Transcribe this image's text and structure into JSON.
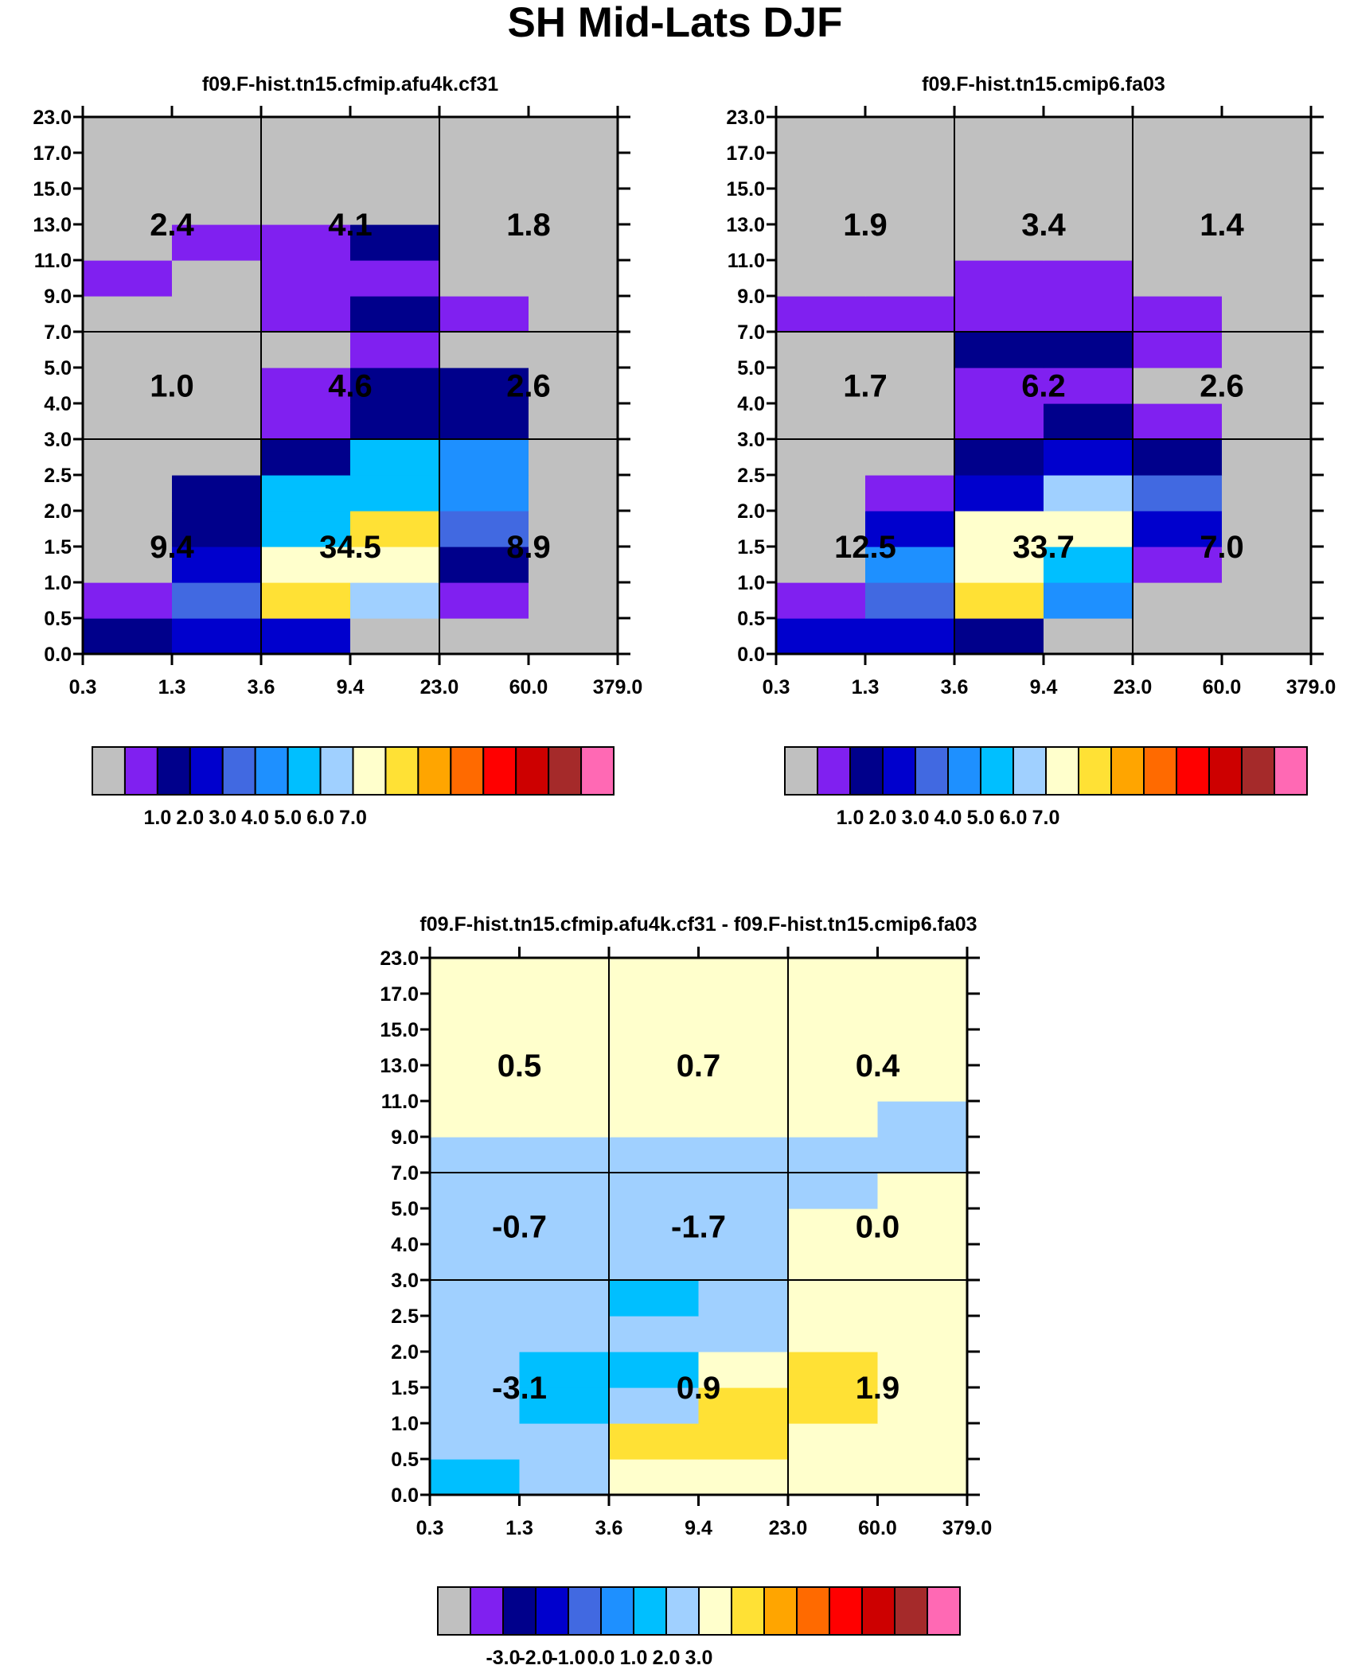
{
  "chart_data": [
    {
      "type": "heatmap",
      "title": "f09.F-hist.tn15.cfmip.afu4k.cf31",
      "xticks": [
        "0.3",
        "1.3",
        "3.6",
        "9.4",
        "23.0",
        "60.0",
        "379.0"
      ],
      "yticks": [
        "0.0",
        "0.5",
        "1.0",
        "1.5",
        "2.0",
        "2.5",
        "3.0",
        "4.0",
        "5.0",
        "7.0",
        "9.0",
        "11.0",
        "13.0",
        "15.0",
        "17.0",
        "23.0"
      ],
      "cells": [
        [
          2,
          3,
          3,
          0,
          0,
          0
        ],
        [
          1,
          4,
          9,
          7,
          1,
          0
        ],
        [
          0,
          3,
          8,
          8,
          2,
          0
        ],
        [
          0,
          2,
          6,
          9,
          4,
          0
        ],
        [
          0,
          2,
          6,
          6,
          5,
          0
        ],
        [
          0,
          0,
          2,
          6,
          5,
          0
        ],
        [
          0,
          0,
          1,
          2,
          2,
          0
        ],
        [
          0,
          0,
          1,
          2,
          2,
          0
        ],
        [
          0,
          0,
          0,
          1,
          0,
          0
        ],
        [
          0,
          0,
          1,
          2,
          1,
          0
        ],
        [
          1,
          0,
          1,
          1,
          0,
          0
        ],
        [
          0,
          1,
          1,
          2,
          0,
          0
        ],
        [
          0,
          0,
          0,
          0,
          0,
          0
        ],
        [
          0,
          0,
          0,
          0,
          0,
          0
        ],
        [
          0,
          0,
          0,
          0,
          0,
          0
        ]
      ],
      "group_totals": [
        {
          "value": "2.4",
          "col": 0,
          "row": 2
        },
        {
          "value": "4.1",
          "col": 1,
          "row": 2
        },
        {
          "value": "1.8",
          "col": 2,
          "row": 2
        },
        {
          "value": "1.0",
          "col": 0,
          "row": 1
        },
        {
          "value": "4.6",
          "col": 1,
          "row": 1
        },
        {
          "value": "2.6",
          "col": 2,
          "row": 1
        },
        {
          "value": "9.4",
          "col": 0,
          "row": 0
        },
        {
          "value": "34.5",
          "col": 1,
          "row": 0
        },
        {
          "value": "8.9",
          "col": 2,
          "row": 0
        }
      ],
      "colorbar": {
        "colors": [
          "#c0c0c0",
          "#8020f0",
          "#00008b",
          "#0000cd",
          "#4169e1",
          "#1e90ff",
          "#00bfff",
          "#a0d0ff",
          "#ffffcc",
          "#ffe135",
          "#ffa500",
          "#ff6a00",
          "#ff0000",
          "#cd0000",
          "#a52a2a",
          "#ff69b4"
        ],
        "labels": [
          "1.0",
          "2.0",
          "3.0",
          "4.0",
          "5.0",
          "6.0",
          "7.0"
        ],
        "label_start_boundary": 2
      }
    },
    {
      "type": "heatmap",
      "title": "f09.F-hist.tn15.cmip6.fa03",
      "xticks": [
        "0.3",
        "1.3",
        "3.6",
        "9.4",
        "23.0",
        "60.0",
        "379.0"
      ],
      "yticks": [
        "0.0",
        "0.5",
        "1.0",
        "1.5",
        "2.0",
        "2.5",
        "3.0",
        "4.0",
        "5.0",
        "7.0",
        "9.0",
        "11.0",
        "13.0",
        "15.0",
        "17.0",
        "23.0"
      ],
      "cells": [
        [
          3,
          3,
          2,
          0,
          0,
          0
        ],
        [
          1,
          4,
          9,
          5,
          0,
          0
        ],
        [
          0,
          5,
          8,
          6,
          1,
          0
        ],
        [
          0,
          3,
          8,
          8,
          3,
          0
        ],
        [
          0,
          1,
          3,
          7,
          4,
          0
        ],
        [
          0,
          0,
          2,
          3,
          2,
          0
        ],
        [
          0,
          0,
          1,
          2,
          1,
          0
        ],
        [
          0,
          0,
          1,
          1,
          0,
          0
        ],
        [
          0,
          0,
          2,
          2,
          1,
          0
        ],
        [
          1,
          1,
          1,
          1,
          1,
          0
        ],
        [
          0,
          0,
          1,
          1,
          0,
          0
        ],
        [
          0,
          0,
          0,
          0,
          0,
          0
        ],
        [
          0,
          0,
          0,
          0,
          0,
          0
        ],
        [
          0,
          0,
          0,
          0,
          0,
          0
        ],
        [
          0,
          0,
          0,
          0,
          0,
          0
        ]
      ],
      "group_totals": [
        {
          "value": "1.9",
          "col": 0,
          "row": 2
        },
        {
          "value": "3.4",
          "col": 1,
          "row": 2
        },
        {
          "value": "1.4",
          "col": 2,
          "row": 2
        },
        {
          "value": "1.7",
          "col": 0,
          "row": 1
        },
        {
          "value": "6.2",
          "col": 1,
          "row": 1
        },
        {
          "value": "2.6",
          "col": 2,
          "row": 1
        },
        {
          "value": "12.5",
          "col": 0,
          "row": 0
        },
        {
          "value": "33.7",
          "col": 1,
          "row": 0
        },
        {
          "value": "7.0",
          "col": 2,
          "row": 0
        }
      ],
      "colorbar": {
        "colors": [
          "#c0c0c0",
          "#8020f0",
          "#00008b",
          "#0000cd",
          "#4169e1",
          "#1e90ff",
          "#00bfff",
          "#a0d0ff",
          "#ffffcc",
          "#ffe135",
          "#ffa500",
          "#ff6a00",
          "#ff0000",
          "#cd0000",
          "#a52a2a",
          "#ff69b4"
        ],
        "labels": [
          "1.0",
          "2.0",
          "3.0",
          "4.0",
          "5.0",
          "6.0",
          "7.0"
        ],
        "label_start_boundary": 2
      }
    },
    {
      "type": "heatmap",
      "title": "f09.F-hist.tn15.cfmip.afu4k.cf31 - f09.F-hist.tn15.cmip6.fa03",
      "xticks": [
        "0.3",
        "1.3",
        "3.6",
        "9.4",
        "23.0",
        "60.0",
        "379.0"
      ],
      "yticks": [
        "0.0",
        "0.5",
        "1.0",
        "1.5",
        "2.0",
        "2.5",
        "3.0",
        "4.0",
        "5.0",
        "7.0",
        "9.0",
        "11.0",
        "13.0",
        "15.0",
        "17.0",
        "23.0"
      ],
      "cells": [
        [
          6,
          7,
          8,
          8,
          8,
          8
        ],
        [
          7,
          7,
          9,
          9,
          8,
          8
        ],
        [
          7,
          6,
          7,
          9,
          9,
          8
        ],
        [
          7,
          6,
          6,
          8,
          9,
          8
        ],
        [
          7,
          7,
          7,
          7,
          8,
          8
        ],
        [
          7,
          7,
          6,
          7,
          8,
          8
        ],
        [
          7,
          7,
          7,
          7,
          8,
          8
        ],
        [
          7,
          7,
          7,
          7,
          8,
          8
        ],
        [
          7,
          7,
          7,
          7,
          7,
          8
        ],
        [
          7,
          7,
          7,
          7,
          7,
          7
        ],
        [
          8,
          8,
          8,
          8,
          8,
          7
        ],
        [
          8,
          8,
          8,
          8,
          8,
          8
        ],
        [
          8,
          8,
          8,
          8,
          8,
          8
        ],
        [
          8,
          8,
          8,
          8,
          8,
          8
        ],
        [
          8,
          8,
          8,
          8,
          8,
          8
        ]
      ],
      "group_totals": [
        {
          "value": "0.5",
          "col": 0,
          "row": 2
        },
        {
          "value": "0.7",
          "col": 1,
          "row": 2
        },
        {
          "value": "0.4",
          "col": 2,
          "row": 2
        },
        {
          "value": "-0.7",
          "col": 0,
          "row": 1
        },
        {
          "value": "-1.7",
          "col": 1,
          "row": 1
        },
        {
          "value": "0.0",
          "col": 2,
          "row": 1
        },
        {
          "value": "-3.1",
          "col": 0,
          "row": 0
        },
        {
          "value": "0.9",
          "col": 1,
          "row": 0
        },
        {
          "value": "1.9",
          "col": 2,
          "row": 0
        }
      ],
      "colorbar": {
        "colors": [
          "#c0c0c0",
          "#8020f0",
          "#00008b",
          "#0000cd",
          "#4169e1",
          "#1e90ff",
          "#00bfff",
          "#a0d0ff",
          "#ffffcc",
          "#ffe135",
          "#ffa500",
          "#ff6a00",
          "#ff0000",
          "#cd0000",
          "#a52a2a",
          "#ff69b4"
        ],
        "labels": [
          "-3.0",
          "-2.0",
          "-1.0",
          "0.0",
          "1.0",
          "2.0",
          "3.0"
        ],
        "label_start_boundary": 2
      }
    }
  ],
  "figure": {
    "title": "SH Mid-Lats DJF"
  }
}
